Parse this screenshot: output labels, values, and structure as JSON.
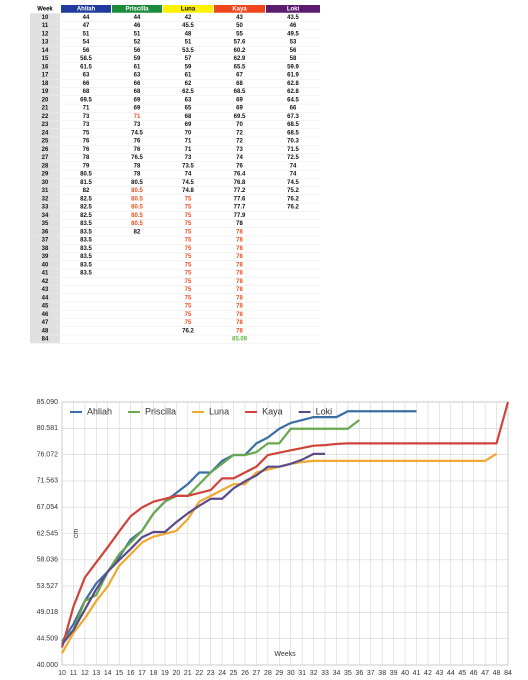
{
  "table": {
    "columns": [
      "Week",
      "Ahliah",
      "Priscilla",
      "Luna",
      "Kaya",
      "Loki"
    ],
    "header_colors": [
      "#ffffff",
      "#1f3b9e",
      "#1e8a3c",
      "#fff200",
      "#f0461c",
      "#5b1c70"
    ],
    "cell_colors": [
      {
        "color": "#e8501e",
        "cells": [
          [
            12,
            2
          ],
          [
            21,
            2
          ],
          [
            22,
            2
          ],
          [
            23,
            2
          ],
          [
            24,
            2
          ],
          [
            25,
            2
          ],
          [
            22,
            3
          ],
          [
            23,
            3
          ],
          [
            24,
            3
          ],
          [
            25,
            3
          ],
          [
            26,
            3
          ],
          [
            27,
            3
          ],
          [
            28,
            3
          ],
          [
            29,
            3
          ],
          [
            30,
            3
          ],
          [
            31,
            3
          ],
          [
            32,
            3
          ],
          [
            33,
            3
          ],
          [
            34,
            3
          ],
          [
            35,
            3
          ],
          [
            36,
            3
          ],
          [
            37,
            3
          ],
          [
            26,
            4
          ],
          [
            27,
            4
          ],
          [
            28,
            4
          ],
          [
            29,
            4
          ],
          [
            30,
            4
          ],
          [
            31,
            4
          ],
          [
            32,
            4
          ],
          [
            33,
            4
          ],
          [
            34,
            4
          ],
          [
            35,
            4
          ],
          [
            36,
            4
          ],
          [
            37,
            4
          ],
          [
            38,
            4
          ]
        ]
      },
      {
        "color": "#5cb83c",
        "cells": [
          [
            39,
            4
          ]
        ]
      }
    ],
    "rows": [
      [
        10,
        44,
        44,
        42,
        43,
        43.5
      ],
      [
        11,
        47,
        46,
        45.5,
        50,
        46
      ],
      [
        12,
        51,
        51,
        48,
        55,
        49.5
      ],
      [
        13,
        54,
        52,
        51,
        57.6,
        53
      ],
      [
        14,
        56,
        56,
        53.5,
        60.2,
        56
      ],
      [
        15,
        58.5,
        59,
        57,
        62.9,
        58
      ],
      [
        16,
        61.5,
        61,
        59,
        65.5,
        59.9
      ],
      [
        17,
        63,
        63,
        61,
        67,
        61.9
      ],
      [
        18,
        66,
        66,
        62,
        68,
        62.8
      ],
      [
        19,
        68,
        68,
        62.5,
        68.5,
        62.8
      ],
      [
        20,
        69.5,
        69,
        63,
        69,
        64.5
      ],
      [
        21,
        71,
        69,
        65,
        69,
        66
      ],
      [
        22,
        73,
        71,
        68,
        69.5,
        67.3
      ],
      [
        23,
        73,
        73,
        69,
        70,
        68.5
      ],
      [
        24,
        75,
        74.5,
        70,
        72,
        68.5
      ],
      [
        25,
        76,
        76,
        71,
        72,
        70.3
      ],
      [
        26,
        76,
        76,
        71,
        73,
        71.5
      ],
      [
        27,
        78,
        76.5,
        73,
        74,
        72.5
      ],
      [
        28,
        79,
        78,
        73.5,
        76,
        74
      ],
      [
        29,
        80.5,
        78,
        74,
        76.4,
        74
      ],
      [
        30,
        81.5,
        80.5,
        74.5,
        76.8,
        74.5
      ],
      [
        31,
        82,
        80.5,
        74.8,
        77.2,
        75.2
      ],
      [
        32,
        82.5,
        80.5,
        75,
        77.6,
        76.2
      ],
      [
        33,
        82.5,
        80.5,
        75,
        77.7,
        76.2
      ],
      [
        34,
        82.5,
        80.5,
        75,
        77.9,
        null
      ],
      [
        35,
        83.5,
        80.5,
        75,
        78,
        null
      ],
      [
        36,
        83.5,
        82,
        75,
        78,
        null
      ],
      [
        37,
        83.5,
        null,
        75,
        78,
        null
      ],
      [
        38,
        83.5,
        null,
        75,
        78,
        null
      ],
      [
        39,
        83.5,
        null,
        75,
        78,
        null
      ],
      [
        40,
        83.5,
        null,
        75,
        78,
        null
      ],
      [
        41,
        83.5,
        null,
        75,
        78,
        null
      ],
      [
        42,
        null,
        null,
        75,
        78,
        null
      ],
      [
        43,
        null,
        null,
        75,
        78,
        null
      ],
      [
        44,
        null,
        null,
        75,
        78,
        null
      ],
      [
        45,
        null,
        null,
        75,
        78,
        null
      ],
      [
        46,
        null,
        null,
        75,
        78,
        null
      ],
      [
        47,
        null,
        null,
        75,
        78,
        null
      ],
      [
        48,
        null,
        null,
        76.2,
        78,
        null
      ],
      [
        84,
        null,
        null,
        null,
        85.09,
        null
      ]
    ]
  },
  "chart_data": {
    "type": "line",
    "x_label": "Weeks",
    "y_label": "cm",
    "categories": [
      10,
      11,
      12,
      13,
      14,
      15,
      16,
      17,
      18,
      19,
      20,
      21,
      22,
      23,
      24,
      25,
      26,
      27,
      28,
      29,
      30,
      31,
      32,
      33,
      34,
      35,
      36,
      37,
      38,
      39,
      40,
      41,
      42,
      43,
      44,
      45,
      46,
      47,
      48,
      84
    ],
    "ylim": [
      40,
      85.09
    ],
    "yticks": [
      {
        "value": 40,
        "label": "40.000"
      },
      {
        "value": 44.509,
        "label": "44.509"
      },
      {
        "value": 49.018,
        "label": "49.018"
      },
      {
        "value": 53.527,
        "label": "53.527"
      },
      {
        "value": 58.036,
        "label": "58.036"
      },
      {
        "value": 62.545,
        "label": "62.545"
      },
      {
        "value": 67.054,
        "label": "67.054"
      },
      {
        "value": 71.563,
        "label": "71.563"
      },
      {
        "value": 76.072,
        "label": "76.072"
      },
      {
        "value": 80.581,
        "label": "80.581"
      },
      {
        "value": 85.09,
        "label": "85.090"
      }
    ],
    "grid": true,
    "legend": "top",
    "series": [
      {
        "name": "Ahliah",
        "color": "#3a6ea5",
        "values": [
          44,
          47,
          51,
          54,
          56,
          58.5,
          61.5,
          63,
          66,
          68,
          69.5,
          71,
          73,
          73,
          75,
          76,
          76,
          78,
          79,
          80.5,
          81.5,
          82,
          82.5,
          82.5,
          82.5,
          83.5,
          83.5,
          83.5,
          83.5,
          83.5,
          83.5,
          83.5,
          null,
          null,
          null,
          null,
          null,
          null,
          null,
          null
        ]
      },
      {
        "name": "Priscilla",
        "color": "#6aa84f",
        "values": [
          44,
          46,
          51,
          52,
          56,
          59,
          61,
          63,
          66,
          68,
          69,
          69,
          71,
          73,
          74.5,
          76,
          76,
          76.5,
          78,
          78,
          80.5,
          80.5,
          80.5,
          80.5,
          80.5,
          80.5,
          82,
          null,
          null,
          null,
          null,
          null,
          null,
          null,
          null,
          null,
          null,
          null,
          null,
          null
        ]
      },
      {
        "name": "Luna",
        "color": "#f0a830",
        "values": [
          42,
          45.5,
          48,
          51,
          53.5,
          57,
          59,
          61,
          62,
          62.5,
          63,
          65,
          68,
          69,
          70,
          71,
          71,
          73,
          73.5,
          74,
          74.5,
          74.8,
          75,
          75,
          75,
          75,
          75,
          75,
          75,
          75,
          75,
          75,
          75,
          75,
          75,
          75,
          75,
          75,
          76.2,
          null
        ]
      },
      {
        "name": "Kaya",
        "color": "#d0433a",
        "values": [
          43,
          50,
          55,
          57.6,
          60.2,
          62.9,
          65.5,
          67,
          68,
          68.5,
          69,
          69,
          69.5,
          70,
          72,
          72,
          73,
          74,
          76,
          76.4,
          76.8,
          77.2,
          77.6,
          77.7,
          77.9,
          78,
          78,
          78,
          78,
          78,
          78,
          78,
          78,
          78,
          78,
          78,
          78,
          78,
          78,
          85.09
        ]
      },
      {
        "name": "Loki",
        "color": "#5b4a8a",
        "values": [
          43.5,
          46,
          49.5,
          53,
          56,
          58,
          59.9,
          61.9,
          62.8,
          62.8,
          64.5,
          66,
          67.3,
          68.5,
          68.5,
          70.3,
          71.5,
          72.5,
          74,
          74,
          74.5,
          75.2,
          76.2,
          76.2,
          null,
          null,
          null,
          null,
          null,
          null,
          null,
          null,
          null,
          null,
          null,
          null,
          null,
          null,
          null,
          null
        ]
      }
    ]
  }
}
